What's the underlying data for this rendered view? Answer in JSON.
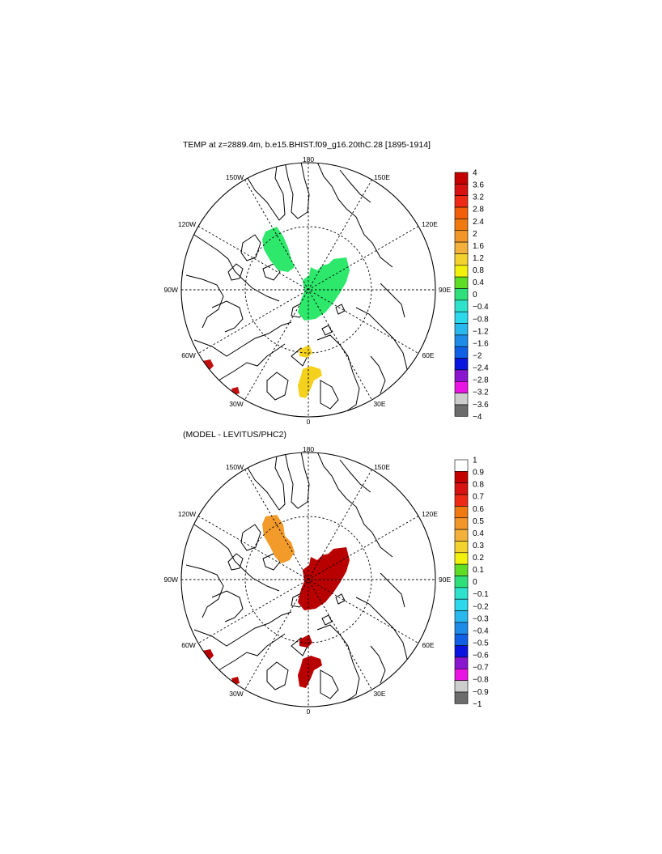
{
  "panels": [
    {
      "title": "TEMP at z=2889.4m, b.e15.BHIST.f09_g16.20thC.28 [1895-1914]",
      "lon_labels": {
        "deg180": "180",
        "e150": "150E",
        "e120": "120E",
        "e90": "90E",
        "e60": "60E",
        "e30": "30E",
        "deg0": "0",
        "w30": "30W",
        "w60": "60W",
        "w90": "90W",
        "w120": "120W",
        "w150": "150W"
      },
      "colorbar": {
        "labels": [
          "4",
          "3.6",
          "3.2",
          "2.8",
          "2.4",
          "2",
          "1.6",
          "1.2",
          "0.8",
          "0.4",
          "0",
          "−0.4",
          "−0.8",
          "−1.2",
          "−1.6",
          "−2",
          "−2.4",
          "−2.8",
          "−3.2",
          "−3.6",
          "−4"
        ],
        "colors": [
          "#c40000",
          "#d81111",
          "#ee2a16",
          "#f25e0a",
          "#f07a10",
          "#f2962a",
          "#f3b03a",
          "#f4d22e",
          "#f1f10c",
          "#5fdd25",
          "#2fe07a",
          "#2ee2cc",
          "#2cd8ec",
          "#28b8ee",
          "#1c8ce8",
          "#1060e6",
          "#0a14e0",
          "#8a16d0",
          "#ea14e4",
          "#cdcdcd",
          "#6c6c6c"
        ]
      },
      "fill_colors": {
        "green": "#2ee86c",
        "yellow": "#f4d11d",
        "red": "#c01010"
      }
    },
    {
      "title": "(MODEL - LEVITUS/PHC2)",
      "lon_labels": {
        "deg180": "180",
        "e150": "150E",
        "e120": "120E",
        "e90": "90E",
        "e60": "60E",
        "e30": "30E",
        "deg0": "0",
        "w30": "30W",
        "w60": "60W",
        "w90": "90W",
        "w120": "120W",
        "w150": "150W"
      },
      "colorbar": {
        "labels": [
          "1",
          "0.9",
          "0.8",
          "0.7",
          "0.6",
          "0.5",
          "0.4",
          "0.3",
          "0.2",
          "0.1",
          "0",
          "−0.1",
          "−0.2",
          "−0.3",
          "−0.4",
          "−0.5",
          "−0.6",
          "−0.7",
          "−0.8",
          "−0.9",
          "−1"
        ],
        "colors": [
          "#ffffff",
          "#c40000",
          "#d81111",
          "#ee2a16",
          "#f07a10",
          "#f2962a",
          "#f3b03a",
          "#f4d22e",
          "#f1f10c",
          "#5fdd25",
          "#2fe07a",
          "#2ee2cc",
          "#2cd8ec",
          "#28b8ee",
          "#1c8ce8",
          "#1060e6",
          "#0a14e0",
          "#8a16d0",
          "#ea14e4",
          "#cdcdcd",
          "#6c6c6c"
        ]
      },
      "fill_colors": {
        "orange": "#f29a2a",
        "red": "#b80000"
      }
    }
  ]
}
